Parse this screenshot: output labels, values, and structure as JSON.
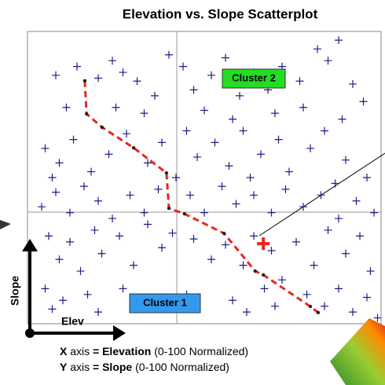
{
  "chart_data": {
    "type": "scatter",
    "title": "Elevation vs. Slope Scatterplot",
    "xlim": [
      0,
      100
    ],
    "ylim": [
      0,
      100
    ],
    "series": [
      {
        "color": "#1c1c8c",
        "marker": "plus",
        "x": [
          8,
          14,
          20,
          24,
          27,
          31,
          36,
          40,
          44,
          47,
          52,
          56,
          60,
          64,
          68,
          72,
          77,
          82,
          85,
          88,
          92,
          95,
          11,
          25,
          33,
          50,
          58,
          70,
          78,
          89,
          5,
          9,
          13,
          18,
          23,
          28,
          34,
          38,
          45,
          48,
          53,
          57,
          61,
          66,
          71,
          74,
          80,
          84,
          90,
          96,
          7,
          42,
          63,
          87,
          4,
          8,
          12,
          16,
          20,
          24,
          29,
          33,
          37,
          46,
          50,
          55,
          59,
          64,
          69,
          73,
          78,
          83,
          88,
          93,
          98,
          6,
          9,
          12,
          15,
          19,
          21,
          26,
          30,
          34,
          38,
          41,
          47,
          52,
          56,
          61,
          64,
          69,
          72,
          76,
          81,
          85,
          90,
          94,
          97,
          5,
          7,
          10,
          17,
          20,
          27,
          31,
          45,
          58,
          62,
          67,
          70,
          79,
          84,
          88,
          92,
          96,
          99
        ],
        "values": [
          85,
          88,
          84,
          90,
          86,
          83,
          78,
          92,
          88,
          80,
          85,
          91,
          78,
          86,
          80,
          88,
          83,
          94,
          90,
          97,
          82,
          76,
          74,
          74,
          72,
          73,
          70,
          72,
          74,
          70,
          60,
          55,
          63,
          52,
          58,
          65,
          55,
          62,
          66,
          57,
          62,
          54,
          66,
          58,
          63,
          52,
          60,
          66,
          56,
          50,
          50,
          50,
          50,
          48,
          40,
          45,
          38,
          47,
          42,
          36,
          44,
          38,
          46,
          44,
          38,
          47,
          41,
          44,
          38,
          46,
          40,
          44,
          36,
          42,
          38,
          30,
          22,
          28,
          18,
          32,
          24,
          30,
          20,
          34,
          26,
          31,
          29,
          22,
          27,
          20,
          30,
          25,
          15,
          28,
          20,
          32,
          24,
          30,
          18,
          12,
          5,
          8,
          10,
          4,
          12,
          6,
          10,
          8,
          4,
          12,
          6,
          10,
          6,
          12,
          4,
          9,
          2
        ]
      },
      {
        "color": "#e8261c",
        "line": "dashed",
        "x": [
          16.2,
          16.7,
          21.1,
          30,
          39.3,
          40,
          44.4,
          55.6,
          64.4,
          66.7,
          80,
          82.2
        ],
        "values": [
          83.1,
          71.8,
          67.2,
          60.2,
          51.6,
          39.5,
          37.6,
          30.9,
          18,
          16.7,
          5.9,
          3.8
        ]
      }
    ],
    "highlight": {
      "x": 66.7,
      "y": 27.4,
      "color": "#e8261c"
    },
    "clusters": [
      {
        "label": "Cluster 2",
        "color": "#22dd22"
      },
      {
        "label": "Cluster 1",
        "color": "#3399ee"
      }
    ],
    "axis_indicator": {
      "y_label": "Slope",
      "x_label": "Elev"
    },
    "caption": [
      {
        "var": "X",
        "word": "axis",
        "eq": "= Elevation",
        "note": "(0-100 Normalized)"
      },
      {
        "var": "Y",
        "word": "axis",
        "eq": "= Slope",
        "note": "(0-100 Normalized)"
      }
    ]
  }
}
